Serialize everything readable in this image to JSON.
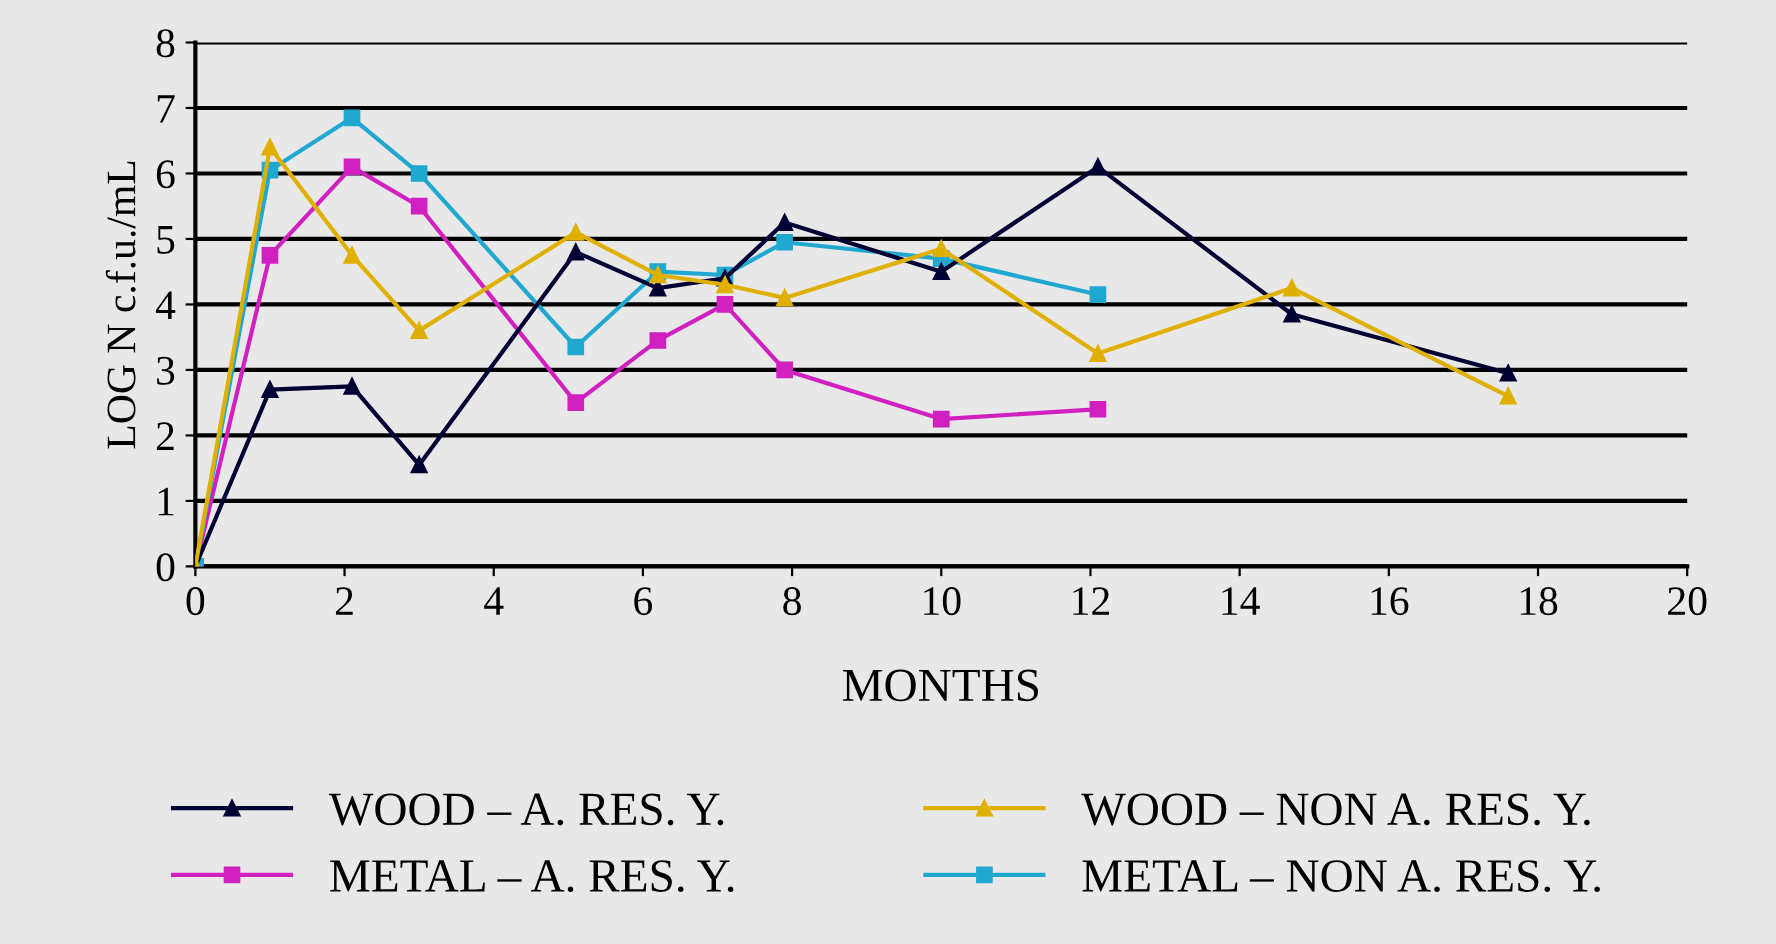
{
  "chart_data": {
    "type": "line",
    "xlabel": "MONTHS",
    "ylabel": "LOG N c.f.u./mL",
    "xlim": [
      0,
      20
    ],
    "xticks": [
      0,
      2,
      4,
      6,
      8,
      10,
      12,
      14,
      16,
      18,
      20
    ],
    "ylim": [
      0,
      8
    ],
    "yticks": [
      0,
      1,
      2,
      3,
      4,
      5,
      6,
      7,
      8
    ],
    "grid": "y",
    "legend": "bottom",
    "line_style": "solid",
    "series": [
      {
        "name": "WOOD – A. RES. Y.",
        "color": "#000033",
        "marker": "triangle",
        "x": [
          0,
          1,
          2.1,
          3,
          5.1,
          6.2,
          7.1,
          7.9,
          10,
          12.1,
          14.7,
          17.6
        ],
        "values": [
          0,
          2.7,
          2.75,
          1.55,
          4.8,
          4.25,
          4.4,
          5.25,
          4.5,
          6.1,
          3.85,
          2.95
        ]
      },
      {
        "name": "METAL – A. RES. Y.",
        "color": "#d020c0",
        "marker": "square",
        "x": [
          0,
          1,
          2.1,
          3,
          5.1,
          6.2,
          7.1,
          7.9,
          10,
          12.1
        ],
        "values": [
          0,
          4.75,
          6.1,
          5.5,
          2.5,
          3.45,
          4.0,
          3.0,
          2.25,
          2.4
        ]
      },
      {
        "name": "WOOD – NON A. RES. Y.",
        "color": "#e0b000",
        "marker": "triangle",
        "x": [
          0,
          1,
          2.1,
          3,
          5.1,
          6.2,
          7.1,
          7.9,
          10,
          12.1,
          14.7,
          17.6
        ],
        "values": [
          0,
          6.4,
          4.75,
          3.6,
          5.1,
          4.45,
          4.3,
          4.1,
          4.85,
          3.25,
          4.25,
          2.6
        ]
      },
      {
        "name": "METAL – NON A. RES. Y.",
        "color": "#20a8d0",
        "marker": "square",
        "x": [
          0,
          1,
          2.1,
          3,
          5.1,
          6.2,
          7.1,
          7.9,
          10,
          12.1
        ],
        "values": [
          0,
          6.05,
          6.85,
          6.0,
          3.35,
          4.5,
          4.45,
          4.95,
          4.7,
          4.15
        ]
      }
    ]
  }
}
